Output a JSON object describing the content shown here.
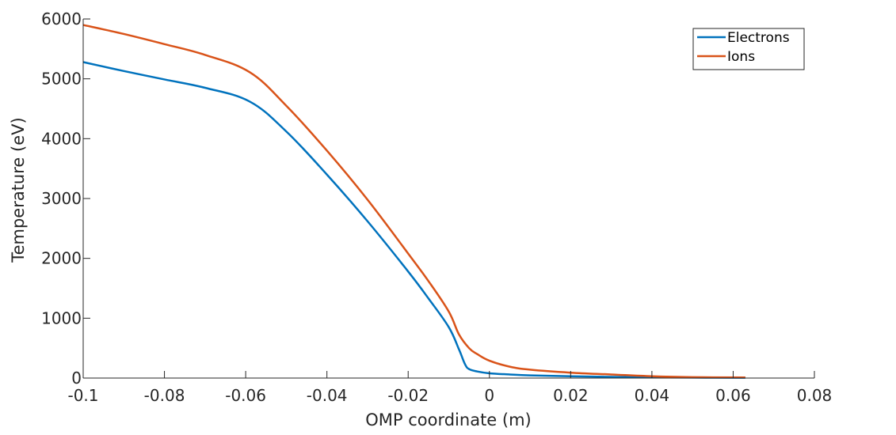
{
  "chart_data": {
    "type": "line",
    "title": "",
    "xlabel": "OMP coordinate (m)",
    "ylabel": "Temperature (eV)",
    "xlim": [
      -0.1,
      0.08
    ],
    "ylim": [
      0,
      6000
    ],
    "x_ticks": [
      -0.1,
      -0.08,
      -0.06,
      -0.04,
      -0.02,
      0,
      0.02,
      0.04,
      0.06,
      0.08
    ],
    "x_tick_labels": [
      "-0.1",
      "-0.08",
      "-0.06",
      "-0.04",
      "-0.02",
      "0",
      "0.02",
      "0.04",
      "0.06",
      "0.08"
    ],
    "y_ticks": [
      0,
      1000,
      2000,
      3000,
      4000,
      5000,
      6000
    ],
    "y_tick_labels": [
      "0",
      "1000",
      "2000",
      "3000",
      "4000",
      "5000",
      "6000"
    ],
    "grid": false,
    "legend_position": "top-right",
    "series": [
      {
        "name": "Electrons",
        "color": "#0072BD",
        "x": [
          -0.1,
          -0.09,
          -0.08,
          -0.07,
          -0.059,
          -0.05,
          -0.04,
          -0.03,
          -0.02,
          -0.015,
          -0.01,
          -0.0075,
          -0.006,
          -0.005,
          -0.003,
          0,
          0.005,
          0.01,
          0.02,
          0.03,
          0.04,
          0.05,
          0.063
        ],
        "y": [
          5280,
          5130,
          4990,
          4850,
          4620,
          4120,
          3400,
          2620,
          1780,
          1330,
          850,
          480,
          230,
          150,
          110,
          80,
          60,
          45,
          30,
          20,
          12,
          8,
          5
        ]
      },
      {
        "name": "Ions",
        "color": "#D95319",
        "x": [
          -0.1,
          -0.09,
          -0.08,
          -0.07,
          -0.059,
          -0.05,
          -0.04,
          -0.03,
          -0.02,
          -0.015,
          -0.01,
          -0.0075,
          -0.005,
          -0.003,
          0,
          0.005,
          0.01,
          0.02,
          0.03,
          0.04,
          0.05,
          0.063
        ],
        "y": [
          5900,
          5750,
          5580,
          5400,
          5110,
          4550,
          3800,
          2980,
          2080,
          1620,
          1110,
          730,
          500,
          400,
          290,
          190,
          140,
          90,
          60,
          30,
          15,
          10
        ]
      }
    ]
  }
}
